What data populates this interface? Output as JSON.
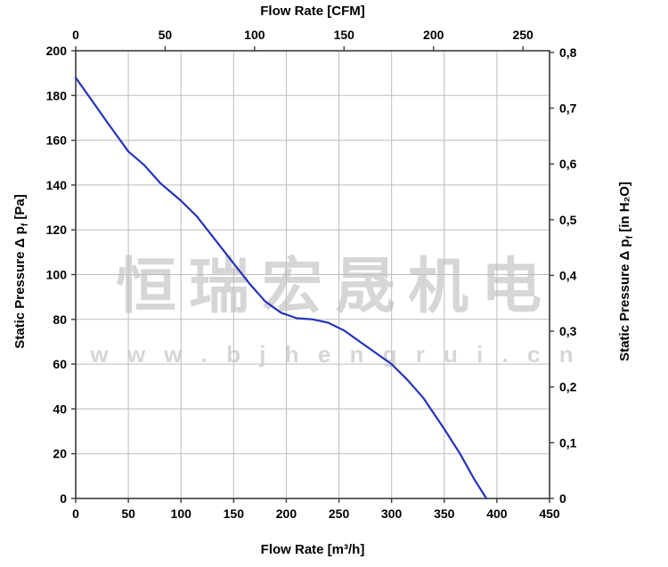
{
  "watermark": {
    "line1": "恒瑞宏晟机电",
    "line2": "w w w . b j h e n g r u i . c n"
  },
  "chart_data": {
    "type": "line",
    "title": "",
    "grid": true,
    "colors": {
      "curve": "#2433bd",
      "grid": "#bdbdbd",
      "border": "#3c3c3c",
      "text": "#000000",
      "watermark": "#c9c9c9"
    },
    "axes": {
      "top": {
        "label": "Flow Rate [CFM]",
        "ticks": [
          0,
          50,
          100,
          150,
          200,
          250
        ],
        "cfm_to_m3h": 1.699
      },
      "bottom": {
        "label": "Flow Rate [m³/h]",
        "ticks": [
          0,
          50,
          100,
          150,
          200,
          250,
          300,
          350,
          400,
          450
        ],
        "range": [
          0,
          450
        ]
      },
      "left": {
        "label_pre": "Static Pressure Δ p",
        "label_sub": "f",
        "label_post": " [Pa]",
        "ticks": [
          0,
          20,
          40,
          60,
          80,
          100,
          120,
          140,
          160,
          180,
          200
        ],
        "range": [
          0,
          200
        ]
      },
      "right": {
        "label_pre": "Static Pressure Δ p",
        "label_sub": "f",
        "label_post": " [in H₂O]",
        "ticks": [
          {
            "label": "0",
            "pa": 0
          },
          {
            "label": "0,1",
            "pa": 24.91
          },
          {
            "label": "0,2",
            "pa": 49.82
          },
          {
            "label": "0,3",
            "pa": 74.73
          },
          {
            "label": "0,4",
            "pa": 99.64
          },
          {
            "label": "0,5",
            "pa": 124.54
          },
          {
            "label": "0,6",
            "pa": 149.45
          },
          {
            "label": "0,7",
            "pa": 174.36
          },
          {
            "label": "0,8",
            "pa": 199.27
          }
        ]
      }
    },
    "series": [
      {
        "name": "static-pressure-curve",
        "color": "#2433bd",
        "points": [
          [
            0,
            188
          ],
          [
            15,
            178
          ],
          [
            30,
            168
          ],
          [
            50,
            155
          ],
          [
            65,
            149
          ],
          [
            80,
            141
          ],
          [
            100,
            133
          ],
          [
            115,
            126
          ],
          [
            130,
            117
          ],
          [
            150,
            105
          ],
          [
            165,
            96
          ],
          [
            180,
            88
          ],
          [
            195,
            83
          ],
          [
            210,
            80.5
          ],
          [
            225,
            80
          ],
          [
            240,
            78.5
          ],
          [
            255,
            75
          ],
          [
            270,
            70
          ],
          [
            285,
            65
          ],
          [
            300,
            60
          ],
          [
            315,
            53
          ],
          [
            330,
            45
          ],
          [
            350,
            31
          ],
          [
            365,
            20
          ],
          [
            378,
            9
          ],
          [
            390,
            0
          ]
        ]
      }
    ]
  }
}
